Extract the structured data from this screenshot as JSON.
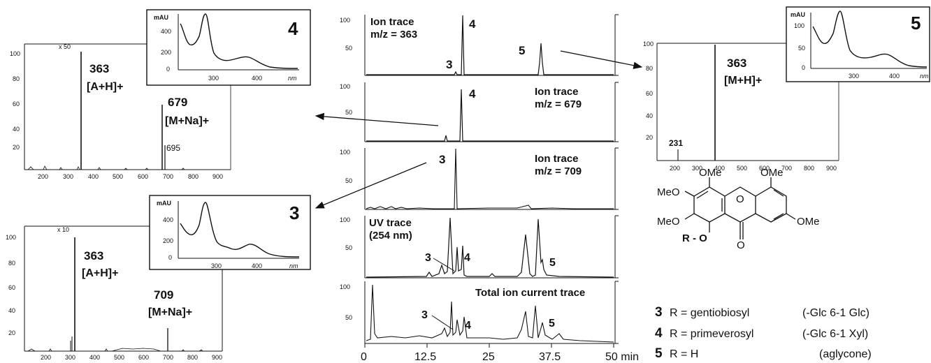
{
  "compound_ids": {
    "c3": "3",
    "c4": "4",
    "c5": "5"
  },
  "ms_left_top": {
    "scale_note": "x 50",
    "peak_main": "363",
    "ion_main": "[A+H]+",
    "peak2": "679",
    "ion2": "[M+Na]+",
    "peak3": "695",
    "y_ticks": [
      "100",
      "80",
      "60",
      "40",
      "20"
    ],
    "x_ticks": [
      "200",
      "300",
      "400",
      "500",
      "600",
      "700",
      "800",
      "900"
    ]
  },
  "ms_left_bottom": {
    "scale_note": "x 10",
    "peak_main": "363",
    "ion_main": "[A+H]+",
    "peak2": "709",
    "ion2": "[M+Na]+",
    "y_ticks": [
      "100",
      "80",
      "60",
      "40",
      "20"
    ],
    "x_ticks": [
      "200",
      "300",
      "400",
      "500",
      "600",
      "700",
      "800",
      "900"
    ]
  },
  "ms_right": {
    "peak_main": "363",
    "ion_main": "[M+H]+",
    "peak_small": "231",
    "y_ticks": [
      "100",
      "80",
      "60",
      "40",
      "20"
    ],
    "x_ticks": [
      "200",
      "300",
      "400",
      "500",
      "600",
      "700",
      "800",
      "900"
    ]
  },
  "uv_inset": {
    "unit": "mAU",
    "x_unit": "nm",
    "y_ticks": [
      "400",
      "200",
      "0"
    ],
    "y_ticks_right": [
      "100",
      "50",
      "0"
    ],
    "x_ticks": [
      "300",
      "400"
    ]
  },
  "traces": [
    {
      "label": "Ion trace",
      "sub": "m/z = 363"
    },
    {
      "label": "Ion trace",
      "sub": "m/z = 679"
    },
    {
      "label": "Ion trace",
      "sub": "m/z = 709"
    },
    {
      "label": "UV trace",
      "sub": "(254 nm)"
    },
    {
      "label": "Total ion current trace",
      "sub": ""
    }
  ],
  "trace_y_ticks": [
    "100",
    "50"
  ],
  "time_axis": {
    "ticks": [
      "0",
      "12.5",
      "25",
      "37.5",
      "50 min"
    ]
  },
  "structure": {
    "substituents": [
      "OMe",
      "MeO",
      "MeO",
      "OMe",
      "OMe",
      "R - O",
      "O",
      "O"
    ]
  },
  "legend": [
    {
      "num": "3",
      "text": "R = gentiobiosyl",
      "note": "(-Glc 6-1 Glc)"
    },
    {
      "num": "4",
      "text": "R = primeverosyl",
      "note": "(-Glc 6-1 Xyl)"
    },
    {
      "num": "5",
      "text": "R = H",
      "note": "(aglycone)"
    }
  ]
}
